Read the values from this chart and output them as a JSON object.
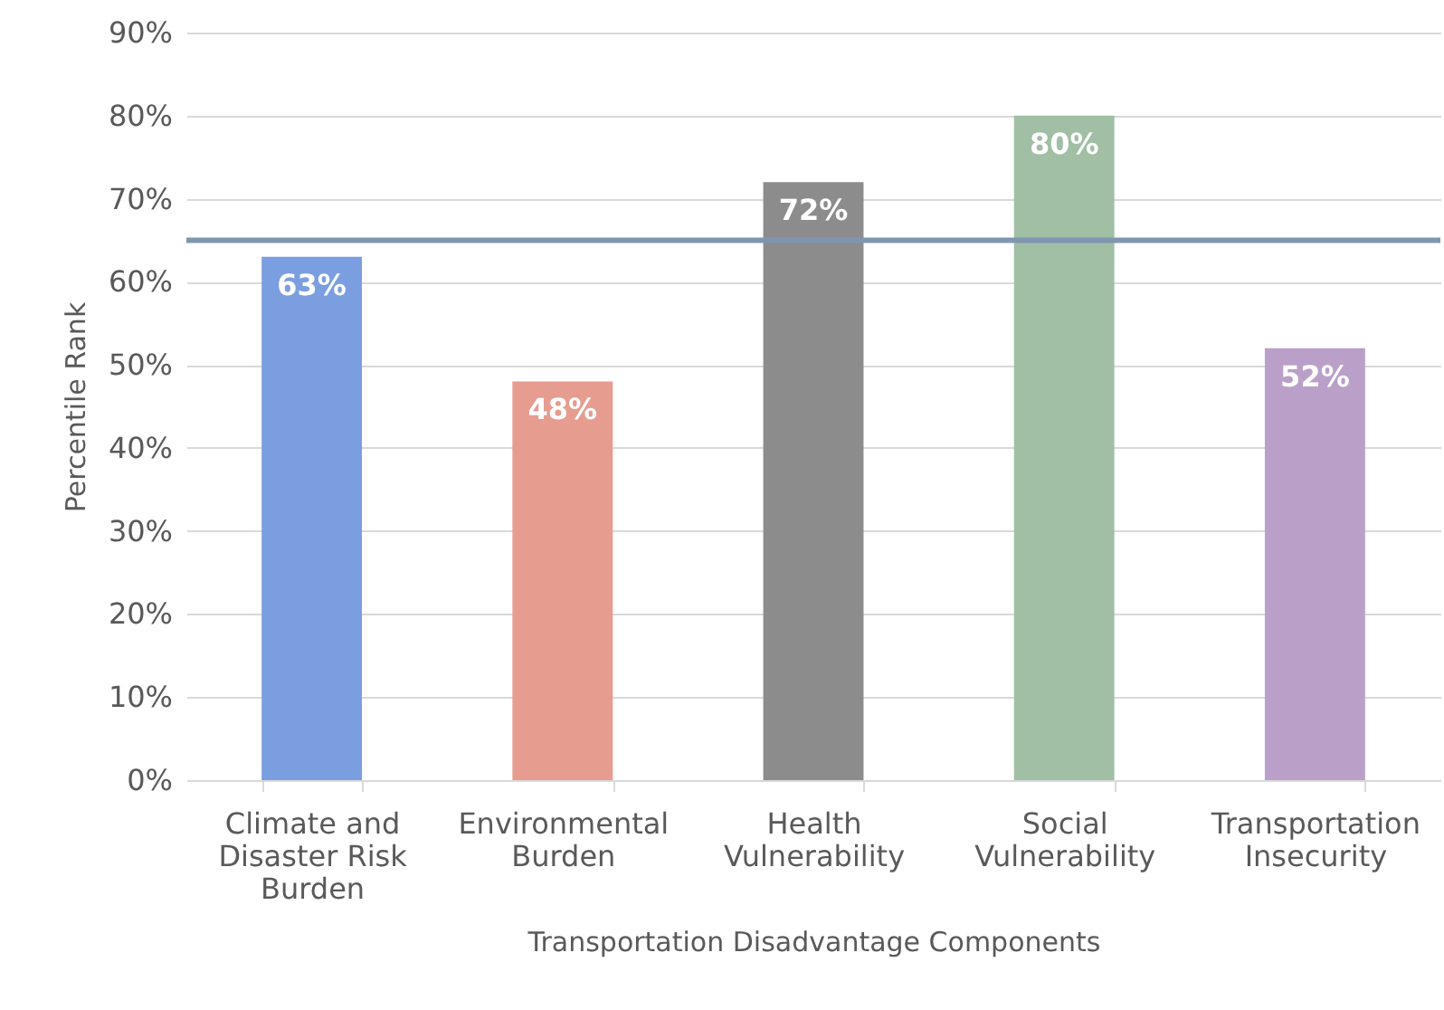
{
  "chart_data": {
    "type": "bar",
    "xlabel": "Transportation Disadvantage Components",
    "ylabel": "Percentile Rank",
    "categories": [
      "Climate and Disaster Risk Burden",
      "Environmental Burden",
      "Health Vulnerability",
      "Social Vulnerability",
      "Transportation Insecurity"
    ],
    "values": [
      63,
      48,
      72,
      80,
      52
    ],
    "colors": [
      "#7b9ee0",
      "#e69c8f",
      "#8c8c8c",
      "#a0bfa4",
      "#baa0c8"
    ],
    "value_labels": [
      "63%",
      "48%",
      "72%",
      "80%",
      "52%"
    ],
    "ylim": [
      0,
      90
    ],
    "yticks": [
      {
        "value": 0,
        "label": "0%"
      },
      {
        "value": 10,
        "label": "10%"
      },
      {
        "value": 20,
        "label": "20%"
      },
      {
        "value": 30,
        "label": "30%"
      },
      {
        "value": 40,
        "label": "40%"
      },
      {
        "value": 50,
        "label": "50%"
      },
      {
        "value": 60,
        "label": "60%"
      },
      {
        "value": 70,
        "label": "70%"
      },
      {
        "value": 80,
        "label": "80%"
      },
      {
        "value": 90,
        "label": "90%"
      }
    ],
    "ref_lines": [
      {
        "axis": "y",
        "value": 65,
        "color": "#7f96b0"
      }
    ],
    "grid": "y"
  }
}
